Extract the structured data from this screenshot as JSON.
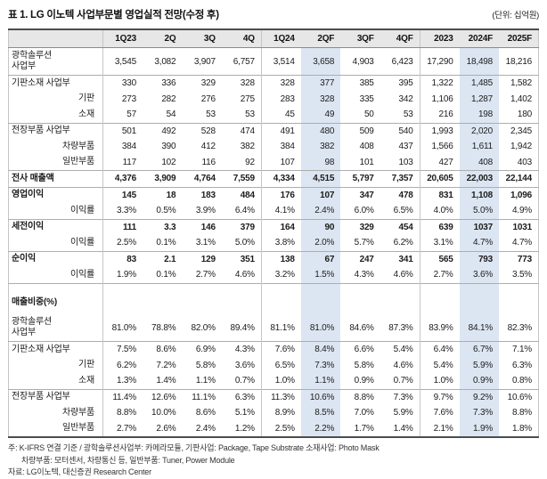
{
  "title": "표 1. LG 이노텍 사업부문별 영업실적 전망(수정 후)",
  "unit": "(단위: 십억원)",
  "colors": {
    "highlight_column": "#dce6f2",
    "header_bg": "#e7e7e7",
    "border_dark": "#4d4d4d"
  },
  "table": {
    "columns": [
      "1Q23",
      "2Q",
      "3Q",
      "4Q",
      "1Q24",
      "2QF",
      "3QF",
      "4QF",
      "2023",
      "2024F",
      "2025F"
    ],
    "highlighted_columns": [
      "2QF",
      "2024F"
    ],
    "rows": [
      {
        "name": "optical-solution-revenue",
        "label": "광학솔루션\n사업부",
        "bold": false,
        "indent": false,
        "sep": false,
        "values": [
          "3,545",
          "3,082",
          "3,907",
          "6,757",
          "3,514",
          "3,658",
          "4,903",
          "6,423",
          "17,290",
          "18,498",
          "18,216"
        ]
      },
      {
        "name": "substrate-material-revenue",
        "label": "기판소재 사업부",
        "bold": false,
        "indent": false,
        "sep": true,
        "values": [
          "330",
          "336",
          "329",
          "328",
          "328",
          "377",
          "385",
          "395",
          "1,322",
          "1,485",
          "1,582"
        ]
      },
      {
        "name": "substrate-revenue",
        "label": "기판",
        "bold": false,
        "indent": true,
        "sep": false,
        "values": [
          "273",
          "282",
          "276",
          "275",
          "283",
          "328",
          "335",
          "342",
          "1,106",
          "1,287",
          "1,402"
        ]
      },
      {
        "name": "material-revenue",
        "label": "소재",
        "bold": false,
        "indent": true,
        "sep": false,
        "values": [
          "57",
          "54",
          "53",
          "53",
          "45",
          "49",
          "50",
          "53",
          "216",
          "198",
          "180"
        ]
      },
      {
        "name": "electronics-parts-revenue",
        "label": "전장부품 사업부",
        "bold": false,
        "indent": false,
        "sep": true,
        "values": [
          "501",
          "492",
          "528",
          "474",
          "491",
          "480",
          "509",
          "540",
          "1,993",
          "2,020",
          "2,345"
        ]
      },
      {
        "name": "vehicle-parts-revenue",
        "label": "차량부품",
        "bold": false,
        "indent": true,
        "sep": false,
        "values": [
          "384",
          "390",
          "412",
          "382",
          "384",
          "382",
          "408",
          "437",
          "1,566",
          "1,611",
          "1,942"
        ]
      },
      {
        "name": "general-parts-revenue",
        "label": "일반부품",
        "bold": false,
        "indent": true,
        "sep": false,
        "values": [
          "117",
          "102",
          "116",
          "92",
          "107",
          "98",
          "101",
          "103",
          "427",
          "408",
          "403"
        ]
      },
      {
        "name": "total-revenue",
        "label": "전사 매출액",
        "bold": true,
        "indent": false,
        "sep": true,
        "values": [
          "4,376",
          "3,909",
          "4,764",
          "7,559",
          "4,334",
          "4,515",
          "5,797",
          "7,357",
          "20,605",
          "22,003",
          "22,144"
        ]
      },
      {
        "name": "operating-profit",
        "label": "영업이익",
        "bold": true,
        "indent": false,
        "sep": true,
        "values": [
          "145",
          "18",
          "183",
          "484",
          "176",
          "107",
          "347",
          "478",
          "831",
          "1,108",
          "1,096"
        ]
      },
      {
        "name": "operating-margin",
        "label": "이익률",
        "bold": false,
        "indent": true,
        "sep": false,
        "values": [
          "3.3%",
          "0.5%",
          "3.9%",
          "6.4%",
          "4.1%",
          "2.4%",
          "6.0%",
          "6.5%",
          "4.0%",
          "5.0%",
          "4.9%"
        ]
      },
      {
        "name": "pretax-profit",
        "label": "세전이익",
        "bold": true,
        "indent": false,
        "sep": true,
        "values": [
          "111",
          "3.3",
          "146",
          "379",
          "164",
          "90",
          "329",
          "454",
          "639",
          "1037",
          "1031"
        ]
      },
      {
        "name": "pretax-margin",
        "label": "이익률",
        "bold": false,
        "indent": true,
        "sep": false,
        "values": [
          "2.5%",
          "0.1%",
          "3.1%",
          "5.0%",
          "3.8%",
          "2.0%",
          "5.7%",
          "6.2%",
          "3.1%",
          "4.7%",
          "4.7%"
        ]
      },
      {
        "name": "net-profit",
        "label": "순이익",
        "bold": true,
        "indent": false,
        "sep": true,
        "values": [
          "83",
          "2.1",
          "129",
          "351",
          "138",
          "67",
          "247",
          "341",
          "565",
          "793",
          "773"
        ]
      },
      {
        "name": "net-margin",
        "label": "이익률",
        "bold": false,
        "indent": true,
        "sep": false,
        "values": [
          "1.9%",
          "0.1%",
          "2.7%",
          "4.6%",
          "3.2%",
          "1.5%",
          "4.3%",
          "4.6%",
          "2.7%",
          "3.6%",
          "3.5%"
        ]
      },
      {
        "name": "spacer-row",
        "label": "",
        "bold": false,
        "indent": false,
        "sep": true,
        "spacer": true,
        "values": [
          "",
          "",
          "",
          "",
          "",
          "",
          "",
          "",
          "",
          "",
          ""
        ]
      },
      {
        "name": "revenue-share-section",
        "label": "매출비중(%)",
        "bold": true,
        "indent": false,
        "sep": false,
        "section": true,
        "values": [
          "",
          "",
          "",
          "",
          "",
          "",
          "",
          "",
          "",
          "",
          ""
        ]
      },
      {
        "name": "optical-solution-share",
        "label": "광학솔루션\n사업부",
        "bold": false,
        "indent": false,
        "sep": false,
        "values": [
          "81.0%",
          "78.8%",
          "82.0%",
          "89.4%",
          "81.1%",
          "81.0%",
          "84.6%",
          "87.3%",
          "83.9%",
          "84.1%",
          "82.3%"
        ]
      },
      {
        "name": "substrate-material-share",
        "label": "기판소재 사업부",
        "bold": false,
        "indent": false,
        "sep": true,
        "values": [
          "7.5%",
          "8.6%",
          "6.9%",
          "4.3%",
          "7.6%",
          "8.4%",
          "6.6%",
          "5.4%",
          "6.4%",
          "6.7%",
          "7.1%"
        ]
      },
      {
        "name": "substrate-share",
        "label": "기판",
        "bold": false,
        "indent": true,
        "sep": false,
        "values": [
          "6.2%",
          "7.2%",
          "5.8%",
          "3.6%",
          "6.5%",
          "7.3%",
          "5.8%",
          "4.6%",
          "5.4%",
          "5.9%",
          "6.3%"
        ]
      },
      {
        "name": "material-share",
        "label": "소재",
        "bold": false,
        "indent": true,
        "sep": false,
        "values": [
          "1.3%",
          "1.4%",
          "1.1%",
          "0.7%",
          "1.0%",
          "1.1%",
          "0.9%",
          "0.7%",
          "1.0%",
          "0.9%",
          "0.8%"
        ]
      },
      {
        "name": "electronics-parts-share",
        "label": "전장부품 사업부",
        "bold": false,
        "indent": false,
        "sep": true,
        "values": [
          "11.4%",
          "12.6%",
          "11.1%",
          "6.3%",
          "11.3%",
          "10.6%",
          "8.8%",
          "7.3%",
          "9.7%",
          "9.2%",
          "10.6%"
        ]
      },
      {
        "name": "vehicle-parts-share",
        "label": "차량부품",
        "bold": false,
        "indent": true,
        "sep": false,
        "values": [
          "8.8%",
          "10.0%",
          "8.6%",
          "5.1%",
          "8.9%",
          "8.5%",
          "7.0%",
          "5.9%",
          "7.6%",
          "7.3%",
          "8.8%"
        ]
      },
      {
        "name": "general-parts-share",
        "label": "일반부품",
        "bold": false,
        "indent": true,
        "sep": false,
        "end": true,
        "values": [
          "2.7%",
          "2.6%",
          "2.4%",
          "1.2%",
          "2.5%",
          "2.2%",
          "1.7%",
          "1.4%",
          "2.1%",
          "1.9%",
          "1.8%"
        ]
      }
    ]
  },
  "footnotes": [
    "주: K-IFRS 연결 기준 / 광학솔루션사업부: 카메라모듈, 기판사업: Package, Tape Substrate 소재사업: Photo Mask",
    "차량부품: 모터센서, 차량통신 등, 일반부품: Tuner, Power Module",
    "자료: LG이노텍, 대신증권 Research Center"
  ]
}
